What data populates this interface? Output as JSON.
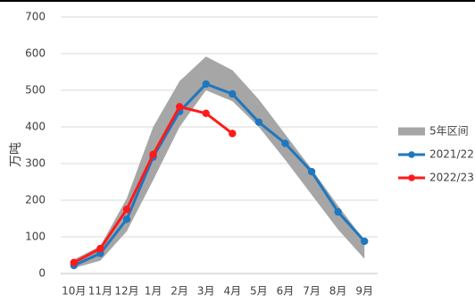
{
  "chart_data": {
    "type": "line",
    "title": "",
    "ylabel": "万吨",
    "xlabel": "",
    "categories": [
      "10月",
      "11月",
      "12月",
      "1月",
      "2月",
      "3月",
      "4月",
      "5月",
      "6月",
      "7月",
      "8月",
      "9月"
    ],
    "ylim": [
      0,
      700
    ],
    "yticks": [
      0,
      100,
      200,
      300,
      400,
      500,
      600,
      700
    ],
    "grid": true,
    "legend_position": "right",
    "band": {
      "name": "5年区间",
      "color": "#a6a6a6",
      "low": [
        15,
        35,
        115,
        255,
        400,
        500,
        470,
        400,
        310,
        215,
        120,
        40
      ],
      "high": [
        38,
        75,
        205,
        400,
        525,
        592,
        555,
        475,
        380,
        285,
        185,
        90
      ]
    },
    "series": [
      {
        "name": "2021/22",
        "color": "#1f77bf",
        "values": [
          22,
          55,
          148,
          318,
          442,
          517,
          490,
          413,
          355,
          278,
          168,
          88
        ]
      },
      {
        "name": "2022/23",
        "color": "#ff1a1a",
        "values": [
          30,
          68,
          175,
          325,
          455,
          437,
          382,
          null,
          null,
          null,
          null,
          null
        ]
      }
    ]
  }
}
